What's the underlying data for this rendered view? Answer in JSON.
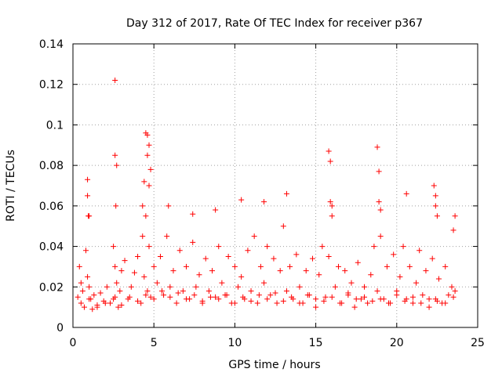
{
  "chart_data": {
    "type": "scatter",
    "title": "Day 312 of 2017, Rate Of TEC Index for receiver p367",
    "xlabel": "GPS time / hours",
    "ylabel": "ROTI / TECUs",
    "xlim": [
      0,
      25
    ],
    "ylim": [
      0,
      0.14
    ],
    "xticks": [
      0,
      5,
      10,
      15,
      20,
      25
    ],
    "xtick_labels": [
      "0",
      "5",
      "10",
      "15",
      "20",
      "25"
    ],
    "yticks": [
      0,
      0.02,
      0.04,
      0.06,
      0.08,
      0.1,
      0.12,
      0.14
    ],
    "ytick_labels": [
      "0",
      "0.02",
      "0.04",
      "0.06",
      "0.08",
      "0.1",
      "0.12",
      "0.14"
    ],
    "grid": true,
    "marker": "+",
    "color": "#ff0000",
    "series": [
      {
        "name": "ROTI",
        "x": [
          0.3,
          0.4,
          0.5,
          0.6,
          0.7,
          0.8,
          0.9,
          1.0,
          1.0,
          1.1,
          1.2,
          1.3,
          1.5,
          1.7,
          1.9,
          2.1,
          2.3,
          2.5,
          2.6,
          2.6,
          2.7,
          2.8,
          2.9,
          3.0,
          3.2,
          3.4,
          3.6,
          3.8,
          4.0,
          4.2,
          4.3,
          4.4,
          4.5,
          4.6,
          4.7,
          4.8,
          5.0,
          5.2,
          5.4,
          5.6,
          5.8,
          6.0,
          6.2,
          6.4,
          6.6,
          6.8,
          7.0,
          7.2,
          7.4,
          7.6,
          7.8,
          8.0,
          8.2,
          8.4,
          8.6,
          8.8,
          9.0,
          9.2,
          9.4,
          9.6,
          9.8,
          10.0,
          10.2,
          10.4,
          10.6,
          10.8,
          11.0,
          11.2,
          11.4,
          11.6,
          11.8,
          12.0,
          12.2,
          12.4,
          12.6,
          12.8,
          13.0,
          13.2,
          13.4,
          13.6,
          13.8,
          14.0,
          14.2,
          14.4,
          14.6,
          14.8,
          15.0,
          15.2,
          15.4,
          15.6,
          15.8,
          16.0,
          16.2,
          16.4,
          16.6,
          16.8,
          17.0,
          17.2,
          17.4,
          17.6,
          17.8,
          18.0,
          18.2,
          18.4,
          18.6,
          18.8,
          19.0,
          19.2,
          19.4,
          19.6,
          19.8,
          20.0,
          20.2,
          20.4,
          20.6,
          20.8,
          21.0,
          21.2,
          21.4,
          21.6,
          21.8,
          22.0,
          22.2,
          22.4,
          22.6,
          22.8,
          23.0,
          23.2,
          23.4,
          23.6,
          0.5,
          1.0,
          1.5,
          2.0,
          2.5,
          3.0,
          3.5,
          4.0,
          4.5,
          5.0,
          5.5,
          6.0,
          6.5,
          7.0,
          7.5,
          8.0,
          8.5,
          9.0,
          9.5,
          10.0,
          10.5,
          11.0,
          11.5,
          12.0,
          12.5,
          13.0,
          13.5,
          14.0,
          14.5,
          15.0,
          15.5,
          16.0,
          16.5,
          17.0,
          17.5,
          18.0,
          18.5,
          19.0,
          19.5,
          20.0,
          20.5,
          21.0,
          21.5,
          22.0,
          22.5,
          23.0,
          23.5,
          0.9,
          2.6,
          2.7,
          4.4,
          4.6,
          4.7,
          5.9,
          7.4,
          8.8,
          10.4,
          11.8,
          13.2,
          15.8,
          15.9,
          18.8,
          18.9,
          20.6,
          22.3,
          22.4,
          23.6,
          0.9,
          0.95,
          2.6,
          2.65,
          4.3,
          4.5,
          4.6,
          4.7,
          4.8,
          15.9,
          16.0,
          18.9,
          19.0,
          22.4,
          22.5,
          23.5
        ],
        "y": [
          0.015,
          0.03,
          0.012,
          0.018,
          0.01,
          0.038,
          0.025,
          0.055,
          0.02,
          0.014,
          0.009,
          0.016,
          0.011,
          0.017,
          0.013,
          0.02,
          0.012,
          0.04,
          0.015,
          0.03,
          0.022,
          0.01,
          0.018,
          0.028,
          0.033,
          0.014,
          0.02,
          0.027,
          0.035,
          0.012,
          0.045,
          0.025,
          0.055,
          0.018,
          0.04,
          0.015,
          0.03,
          0.022,
          0.035,
          0.016,
          0.045,
          0.02,
          0.028,
          0.012,
          0.038,
          0.018,
          0.03,
          0.014,
          0.042,
          0.02,
          0.026,
          0.012,
          0.034,
          0.018,
          0.028,
          0.015,
          0.04,
          0.022,
          0.016,
          0.035,
          0.012,
          0.03,
          0.02,
          0.025,
          0.014,
          0.038,
          0.018,
          0.045,
          0.012,
          0.03,
          0.022,
          0.04,
          0.016,
          0.034,
          0.012,
          0.028,
          0.05,
          0.018,
          0.03,
          0.014,
          0.036,
          0.02,
          0.012,
          0.028,
          0.016,
          0.034,
          0.01,
          0.026,
          0.04,
          0.015,
          0.035,
          0.055,
          0.02,
          0.03,
          0.012,
          0.028,
          0.016,
          0.022,
          0.01,
          0.032,
          0.014,
          0.02,
          0.012,
          0.026,
          0.04,
          0.018,
          0.045,
          0.014,
          0.03,
          0.012,
          0.036,
          0.018,
          0.025,
          0.04,
          0.014,
          0.03,
          0.012,
          0.022,
          0.038,
          0.016,
          0.028,
          0.01,
          0.034,
          0.014,
          0.024,
          0.012,
          0.03,
          0.016,
          0.02,
          0.018,
          0.022,
          0.014,
          0.01,
          0.012,
          0.014,
          0.011,
          0.015,
          0.013,
          0.016,
          0.014,
          0.018,
          0.015,
          0.017,
          0.014,
          0.016,
          0.013,
          0.015,
          0.014,
          0.016,
          0.012,
          0.015,
          0.013,
          0.016,
          0.014,
          0.017,
          0.013,
          0.015,
          0.012,
          0.016,
          0.014,
          0.013,
          0.015,
          0.012,
          0.017,
          0.014,
          0.015,
          0.013,
          0.014,
          0.012,
          0.016,
          0.013,
          0.015,
          0.012,
          0.014,
          0.013,
          0.012,
          0.015,
          0.073,
          0.085,
          0.08,
          0.072,
          0.095,
          0.09,
          0.06,
          0.056,
          0.058,
          0.063,
          0.062,
          0.066,
          0.087,
          0.082,
          0.089,
          0.077,
          0.066,
          0.07,
          0.065,
          0.055,
          0.065,
          0.055,
          0.122,
          0.06,
          0.06,
          0.096,
          0.085,
          0.07,
          0.078,
          0.062,
          0.06,
          0.062,
          0.058,
          0.06,
          0.055,
          0.048
        ]
      }
    ]
  }
}
